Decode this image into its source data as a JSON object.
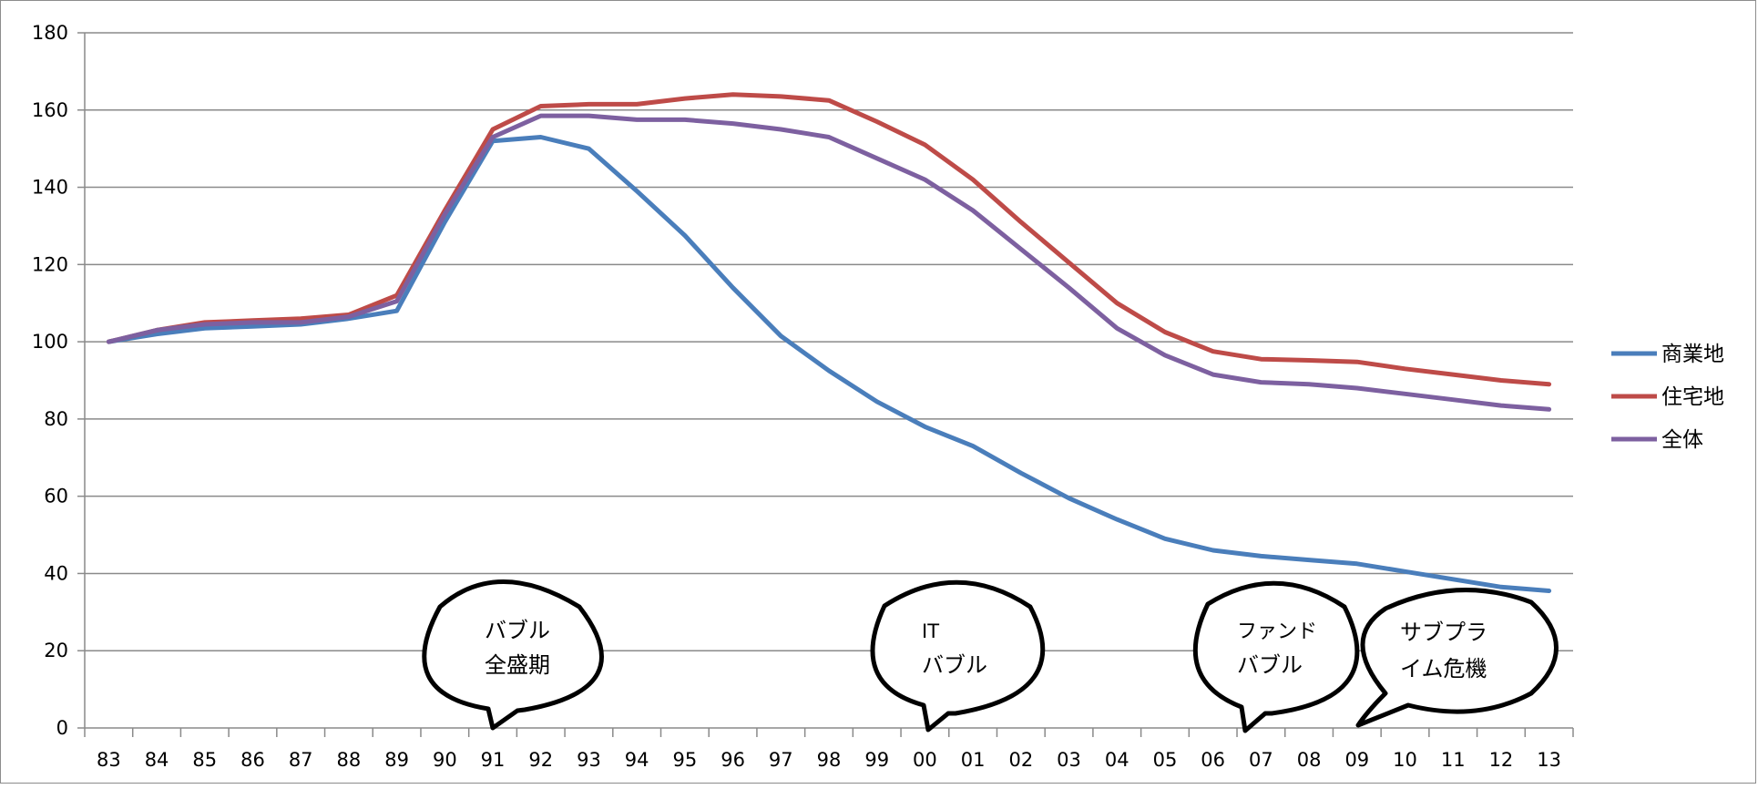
{
  "chart_data": {
    "type": "line",
    "title": "",
    "xlabel": "",
    "ylabel": "",
    "ylim": [
      0,
      180
    ],
    "yticks": [
      "0",
      "20",
      "40",
      "60",
      "80",
      "100",
      "120",
      "140",
      "160",
      "180"
    ],
    "categories": [
      "83",
      "84",
      "85",
      "86",
      "87",
      "88",
      "89",
      "90",
      "91",
      "92",
      "93",
      "94",
      "95",
      "96",
      "97",
      "98",
      "99",
      "00",
      "01",
      "02",
      "03",
      "04",
      "05",
      "06",
      "07",
      "08",
      "09",
      "10",
      "11",
      "12",
      "13"
    ],
    "grid": true,
    "legend_position": "right",
    "series": [
      {
        "name": "商業地",
        "color": "#4a7ebb",
        "values": [
          100,
          102,
          103.5,
          104,
          104.5,
          106,
          108,
          131,
          152,
          153,
          150,
          139,
          127.5,
          114,
          101.5,
          92.5,
          84.5,
          78,
          73,
          66,
          59.5,
          54,
          49,
          46,
          44.5,
          43.5,
          42.5,
          40.5,
          38.5,
          36.5,
          35.5
        ]
      },
      {
        "name": "住宅地",
        "color": "#be4b48",
        "values": [
          100,
          103,
          105,
          105.5,
          106,
          107,
          112,
          134,
          155,
          161,
          161.5,
          161.5,
          163,
          164,
          163.5,
          162.5,
          157,
          151,
          142,
          131,
          120.5,
          110,
          102.5,
          97.5,
          95.5,
          95.2,
          94.8,
          93,
          91.5,
          90,
          89
        ]
      },
      {
        "name": "全体",
        "color": "#7d60a0",
        "values": [
          100,
          103,
          104.5,
          105,
          105,
          106.5,
          110.5,
          133,
          153,
          158.5,
          158.5,
          157.5,
          157.5,
          156.5,
          155,
          153,
          147.5,
          142,
          134,
          124,
          114,
          103.5,
          96.5,
          91.5,
          89.5,
          89,
          88,
          86.5,
          85,
          83.5,
          82.5
        ]
      }
    ],
    "annotations": [
      {
        "id": "bubble-bubble-peak",
        "lines": [
          "バブル",
          "全盛期"
        ]
      },
      {
        "id": "bubble-it-bubble",
        "lines": [
          "IT",
          "バブル"
        ]
      },
      {
        "id": "bubble-fund-bubble",
        "lines": [
          "ファンド",
          "バブル"
        ]
      },
      {
        "id": "bubble-subprime",
        "lines": [
          "サブプラ",
          "イム危機"
        ]
      }
    ]
  }
}
